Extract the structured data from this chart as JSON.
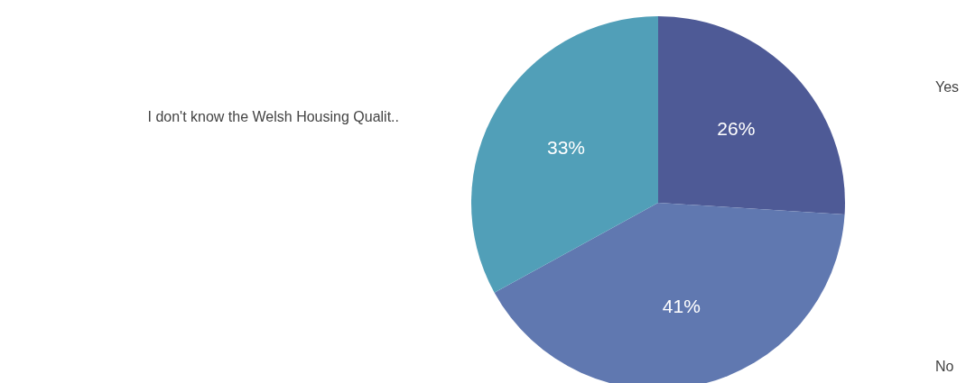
{
  "chart_data": {
    "type": "pie",
    "categories": [
      "Yes",
      "No",
      "I don't know the Welsh Housing Qualit.."
    ],
    "values": [
      26,
      41,
      33
    ],
    "colors": [
      "#4e5a96",
      "#6078b0",
      "#519fb8"
    ],
    "value_labels": [
      "26%",
      "41%",
      "33%"
    ]
  }
}
